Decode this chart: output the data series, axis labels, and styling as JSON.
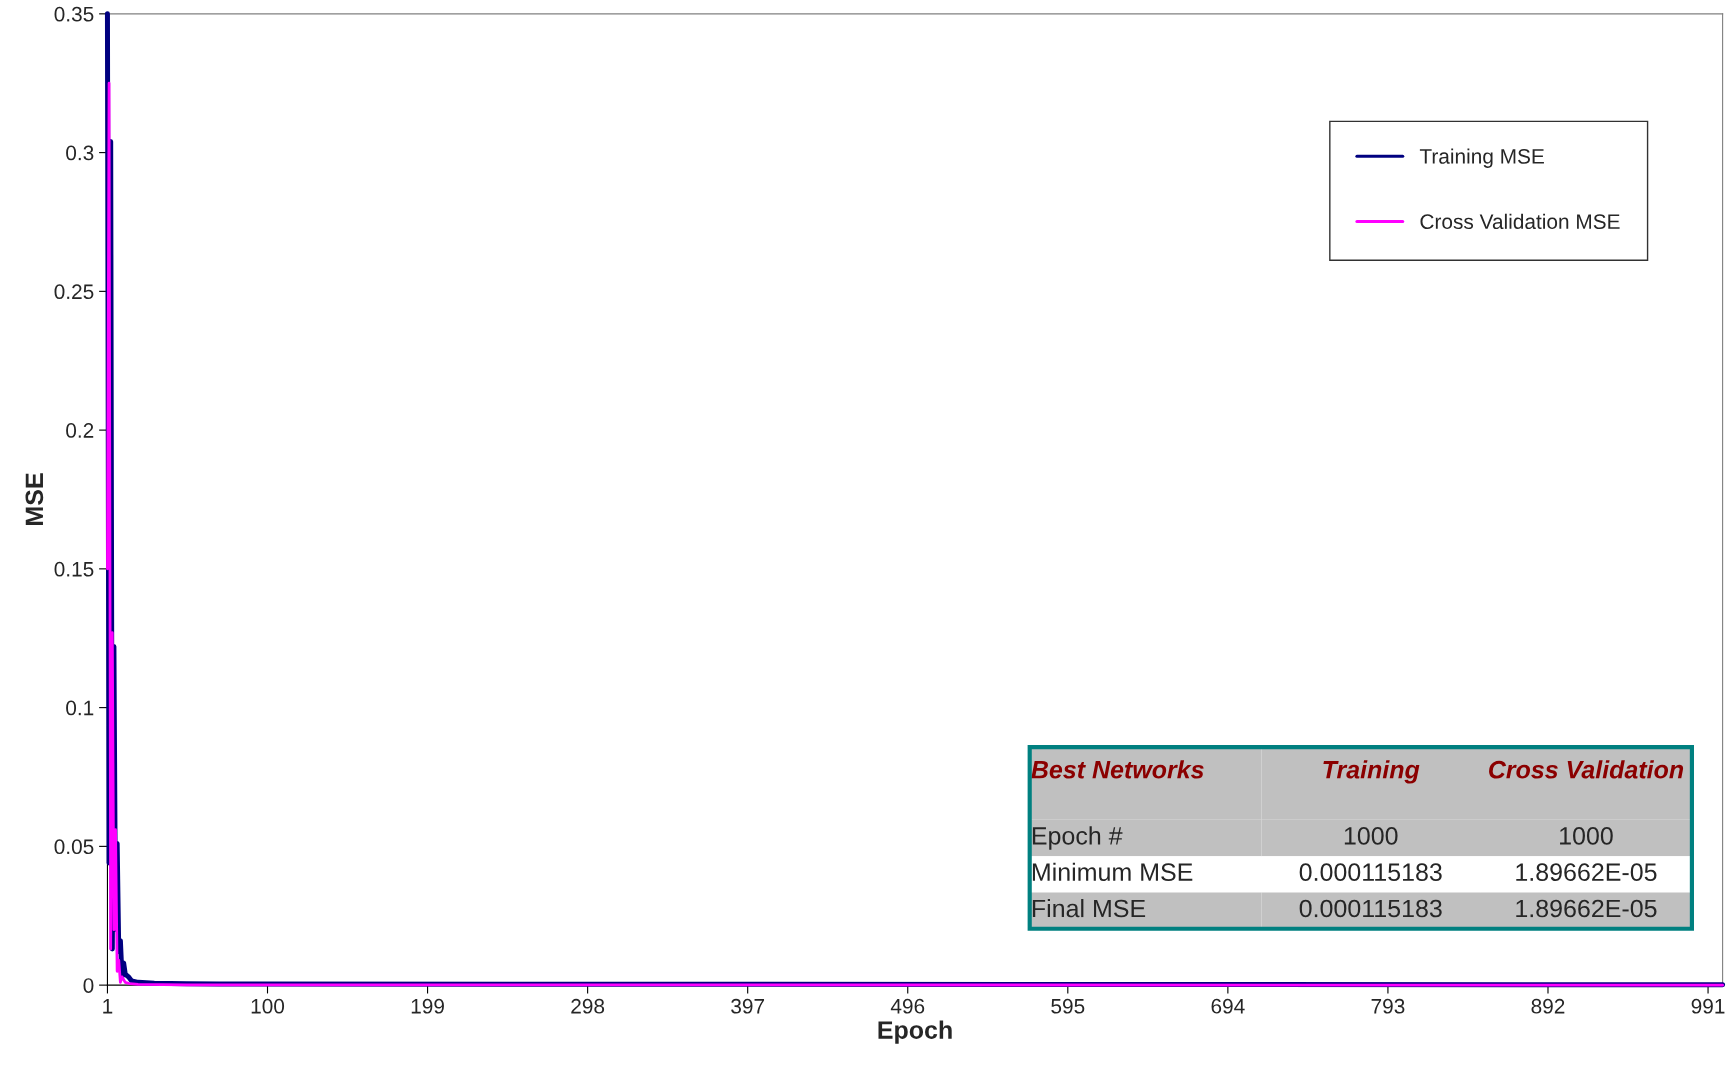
{
  "chart_data": {
    "type": "line",
    "xlabel": "Epoch",
    "ylabel": "MSE",
    "xlim": [
      1,
      1000
    ],
    "ylim": [
      0,
      0.35
    ],
    "xticks": [
      1,
      100,
      199,
      298,
      397,
      496,
      595,
      694,
      793,
      892,
      991
    ],
    "yticks": [
      0,
      0.05,
      0.1,
      0.15,
      0.2,
      0.25,
      0.3,
      0.35
    ],
    "grid": false,
    "legend": "top right",
    "marker": "none",
    "line_style": "solid",
    "series": [
      {
        "name": "Training MSE",
        "color": "#000080",
        "x": [
          1,
          2,
          3,
          4,
          5,
          6,
          7,
          8,
          9,
          10,
          11,
          12,
          14,
          16,
          20,
          30,
          50,
          70,
          1000
        ],
        "values": [
          0.35,
          0.044,
          0.304,
          0.013,
          0.122,
          0.02,
          0.051,
          0.012,
          0.016,
          0.003,
          0.008,
          0.004,
          0.003,
          0.0015,
          0.001,
          0.0007,
          0.0005,
          0.0004,
          0.0001
        ]
      },
      {
        "name": "Cross Validation MSE",
        "color": "#ff00ff",
        "x": [
          1,
          2,
          3,
          4,
          5,
          6,
          7,
          8,
          9,
          10,
          12,
          15,
          20,
          50,
          1000
        ],
        "values": [
          0.15,
          0.325,
          0.013,
          0.127,
          0.02,
          0.056,
          0.005,
          0.009,
          0.001,
          0.003,
          0.001,
          0.0005,
          0.0003,
          0.0001,
          0
        ]
      }
    ],
    "annotations": [
      "Best Networks",
      "Training",
      "Cross Validation",
      "Epoch #",
      "1000",
      "1000",
      "Minimum MSE",
      "0.000115183",
      "1.89662E-05",
      "Final MSE",
      "0.000115183",
      "1.89662E-05"
    ]
  }
}
